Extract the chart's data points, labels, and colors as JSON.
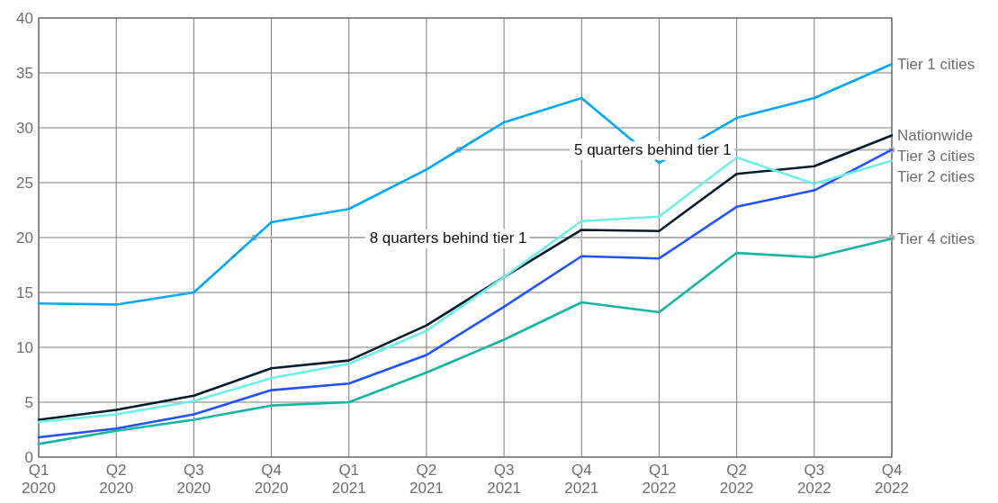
{
  "chart_data": {
    "type": "line",
    "categories": [
      "Q1 2020",
      "Q2 2020",
      "Q3 2020",
      "Q4 2020",
      "Q1 2021",
      "Q2 2021",
      "Q3 2021",
      "Q4 2021",
      "Q1 2022",
      "Q2 2022",
      "Q3 2022",
      "Q4 2022"
    ],
    "series": [
      {
        "name": "Tier 1 cities",
        "color": "#00a9f4",
        "values": [
          14.0,
          13.9,
          15.0,
          21.4,
          22.6,
          26.2,
          30.5,
          32.7,
          26.8,
          30.9,
          32.7,
          35.8
        ]
      },
      {
        "name": "Nationwide",
        "color": "#051c2c",
        "values": [
          3.4,
          4.3,
          5.6,
          8.1,
          8.8,
          12.0,
          16.4,
          20.7,
          20.6,
          25.8,
          26.5,
          29.3
        ]
      },
      {
        "name": "Tier 3 cities",
        "color": "#2251ff",
        "values": [
          1.8,
          2.6,
          3.9,
          6.1,
          6.7,
          9.3,
          13.7,
          18.3,
          18.1,
          22.8,
          24.3,
          28.0
        ]
      },
      {
        "name": "Tier 2 cities",
        "color": "#6ff0e6",
        "values": [
          3.2,
          3.9,
          5.1,
          7.2,
          8.5,
          11.5,
          16.4,
          21.5,
          21.9,
          27.3,
          24.9,
          27.0
        ]
      },
      {
        "name": "Tier 4 cities",
        "color": "#14b4a2",
        "values": [
          1.2,
          2.4,
          3.4,
          4.7,
          5.0,
          7.7,
          10.7,
          14.1,
          13.2,
          18.6,
          18.2,
          19.9
        ]
      }
    ],
    "ylim": [
      0,
      40
    ],
    "yticks": [
      0,
      5,
      10,
      15,
      20,
      25,
      30,
      35,
      40
    ],
    "grid": true,
    "ref_lines": [
      {
        "axis": "y",
        "value": 20,
        "label": "8 quarters behind tier 1",
        "color": "#b3b3b3"
      },
      {
        "axis": "y",
        "value": 28,
        "label": "5 quarters behind tier 1",
        "color": "#b3b3b3"
      }
    ]
  }
}
